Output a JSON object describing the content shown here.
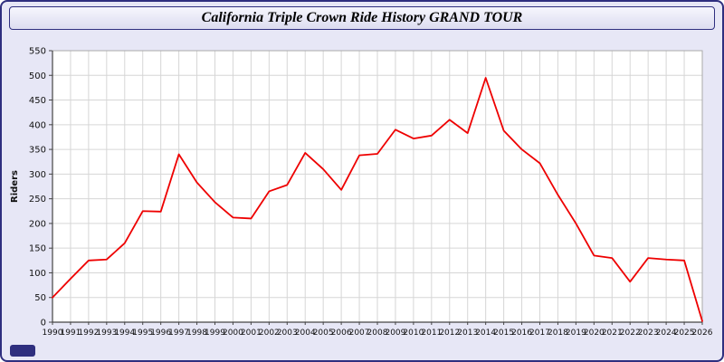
{
  "header": {
    "title": "California Triple Crown Ride History GRAND TOUR"
  },
  "chart_data": {
    "type": "line",
    "x": [
      1990,
      1991,
      1992,
      1993,
      1994,
      1995,
      1996,
      1997,
      1998,
      1999,
      2000,
      2001,
      2002,
      2003,
      2004,
      2005,
      2006,
      2007,
      2008,
      2009,
      2010,
      2011,
      2012,
      2013,
      2014,
      2015,
      2016,
      2017,
      2018,
      2019,
      2020,
      2021,
      2022,
      2023,
      2024,
      2025,
      2026
    ],
    "series": [
      {
        "name": "Riders",
        "color": "#ee0000",
        "values": [
          50,
          88,
          125,
          127,
          160,
          225,
          224,
          340,
          283,
          243,
          212,
          210,
          265,
          278,
          343,
          310,
          268,
          338,
          341,
          390,
          372,
          378,
          410,
          383,
          495,
          388,
          350,
          322,
          258,
          200,
          135,
          130,
          82,
          130,
          127,
          125,
          2
        ]
      }
    ],
    "title": "California Triple Crown Ride History GRAND TOUR",
    "xlabel": "",
    "ylabel": "Riders",
    "ylim": [
      0,
      550
    ],
    "ytick_step": 50,
    "grid": true,
    "legend": "none",
    "colors": {
      "background": "#e7e7f6",
      "plot_background": "#ffffff",
      "gridline": "#d6d6d6",
      "axis": "#444444",
      "line": "#ee0000",
      "frame_border": "#2f2f7f"
    }
  }
}
